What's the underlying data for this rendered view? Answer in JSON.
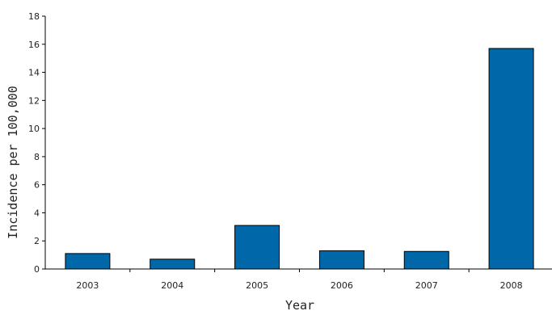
{
  "chart_data": {
    "type": "bar",
    "categories": [
      "2003",
      "2004",
      "2005",
      "2006",
      "2007",
      "2008"
    ],
    "values": [
      1.1,
      0.7,
      3.1,
      1.3,
      1.25,
      15.7
    ],
    "title": "",
    "xlabel": "Year",
    "ylabel": "Incidence per 100,000",
    "ylim": [
      0,
      18
    ],
    "yticks": [
      0,
      2,
      4,
      6,
      8,
      10,
      12,
      14,
      16,
      18
    ],
    "grid": false,
    "bar_color": "#0067a8"
  }
}
